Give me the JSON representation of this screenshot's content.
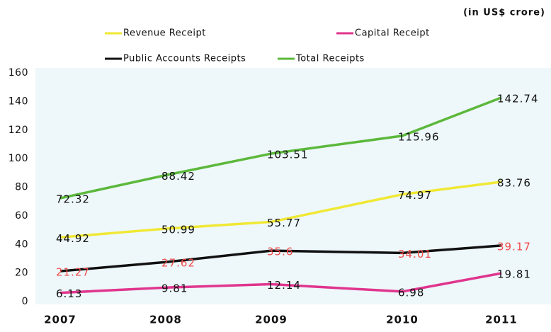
{
  "chart_data": {
    "type": "line",
    "subtitle": "(in US$ crore)",
    "categories": [
      "2007",
      "2008",
      "2009",
      "2010",
      "2011"
    ],
    "series": [
      {
        "name": "Revenue Receipt",
        "color": "#f0e834",
        "label_color": "#111111",
        "values": [
          44.92,
          50.99,
          55.77,
          74.97,
          83.76
        ]
      },
      {
        "name": "Capital Receipt",
        "color": "#e0358e",
        "label_color": "#111111",
        "values": [
          6.13,
          9.81,
          12.14,
          6.98,
          19.81
        ]
      },
      {
        "name": "Public Accounts Receipts",
        "color": "#111111",
        "label_color": "#f04a4a",
        "values": [
          21.27,
          27.62,
          35.6,
          34.01,
          39.17
        ]
      },
      {
        "name": "Total Receipts",
        "color": "#5cb83c",
        "label_color": "#111111",
        "values": [
          72.32,
          88.42,
          103.51,
          115.96,
          142.74
        ]
      }
    ],
    "ylim": [
      0,
      160
    ],
    "yticks": [
      0,
      20,
      40,
      60,
      80,
      100,
      120,
      140,
      160
    ],
    "grid": false
  }
}
